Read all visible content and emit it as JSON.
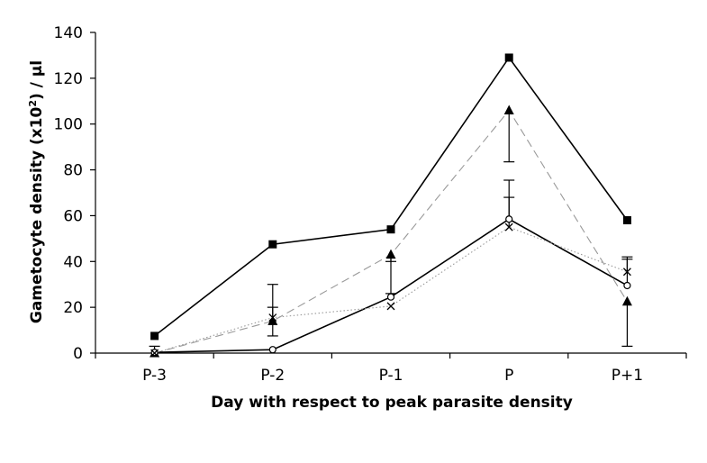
{
  "chart_data": {
    "type": "line",
    "categories": [
      "P-3",
      "P-2",
      "P-1",
      "P",
      "P+1"
    ],
    "xlabel": "Day with respect to peak parasite density",
    "ylabel_parts": {
      "before": "Gametocyte density (x10",
      "sup": "2",
      "after": ") / µl"
    },
    "ylim": [
      0,
      140
    ],
    "yticks": [
      0,
      20,
      40,
      60,
      80,
      100,
      120,
      140
    ],
    "grid": false,
    "legend": "none",
    "series": [
      {
        "marker": "square",
        "line": "solid",
        "color": "#000000",
        "values": [
          7.5,
          47.5,
          54,
          129,
          58
        ],
        "error_low": [
          null,
          null,
          null,
          null,
          null
        ],
        "error_high": [
          null,
          null,
          null,
          null,
          null
        ]
      },
      {
        "marker": "triangle",
        "line": "dashed",
        "color": "#999999",
        "values": [
          0,
          14,
          43,
          106,
          22.5
        ],
        "error_low": [
          null,
          7.5,
          26,
          83.5,
          3
        ],
        "error_high": [
          null,
          30,
          40,
          null,
          null
        ]
      },
      {
        "marker": "circle",
        "line": "solid",
        "color": "#000000",
        "values": [
          0.3,
          1.5,
          24.5,
          58.5,
          29.5
        ],
        "error_low": [
          null,
          null,
          null,
          null,
          null
        ],
        "error_high": [
          null,
          null,
          null,
          75.5,
          41
        ]
      },
      {
        "marker": "cross",
        "line": "dotted",
        "color": "#999999",
        "values": [
          0,
          15.5,
          20.5,
          55,
          35.5
        ],
        "error_low": [
          null,
          null,
          null,
          null,
          null
        ],
        "error_high": [
          3,
          20,
          null,
          68,
          42
        ]
      }
    ]
  }
}
